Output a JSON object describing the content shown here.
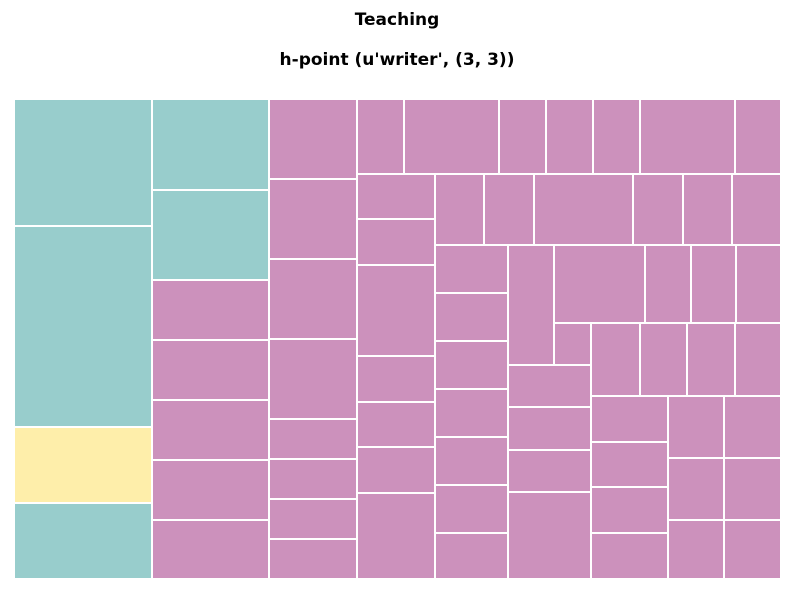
{
  "chart_data": {
    "type": "treemap",
    "title": "Teaching",
    "subtitle": "h-point (u'writer', (3, 3))",
    "groups": [
      {
        "name": "teal",
        "color": "#98cdcc",
        "tile_count": 5
      },
      {
        "name": "yellow",
        "color": "#feeeaa",
        "tile_count": 1
      },
      {
        "name": "pink",
        "color": "#cc91bc",
        "tile_count": 77
      }
    ]
  }
}
